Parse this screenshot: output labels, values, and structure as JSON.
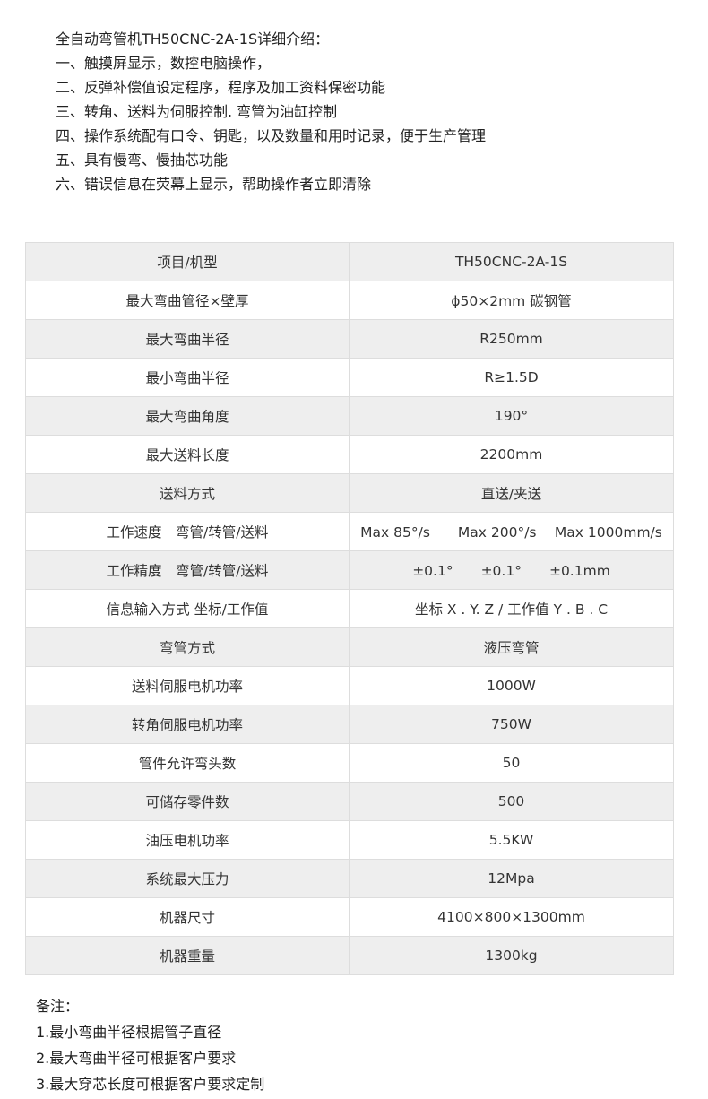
{
  "intro": [
    "全自动弯管机TH50CNC-2A-1S详细介绍：",
    "一、触摸屏显示，数控电脑操作，",
    "二、反弹补偿值设定程序，程序及加工资料保密功能",
    "三、转角、送料为伺服控制. 弯管为油缸控制",
    "四、操作系统配有口令、钥匙，以及数量和用时记录，便于生产管理",
    "五、具有慢弯、慢抽芯功能",
    "六、错误信息在荧幕上显示，帮助操作者立即清除"
  ],
  "table": [
    [
      "项目/机型",
      "TH50CNC-2A-1S"
    ],
    [
      "最大弯曲管径×壁厚",
      "ϕ50×2mm 碳钢管"
    ],
    [
      "最大弯曲半径",
      "R250mm"
    ],
    [
      "最小弯曲半径",
      "R≥1.5D"
    ],
    [
      "最大弯曲角度",
      "190°"
    ],
    [
      "最大送料长度",
      "2200mm"
    ],
    [
      "送料方式",
      "直送/夹送"
    ],
    [
      "工作速度　弯管/转管/送料",
      "Max 85°/s　　Max 200°/s　 Max 1000mm/s"
    ],
    [
      "工作精度　弯管/转管/送料",
      "±0.1°　　±0.1°　　±0.1mm"
    ],
    [
      "信息输入方式  坐标/工作值",
      "坐标 X . Y.  Z  /  工作值 Y . B . C"
    ],
    [
      "弯管方式",
      "液压弯管"
    ],
    [
      "送料伺服电机功率",
      "1000W"
    ],
    [
      "转角伺服电机功率",
      "750W"
    ],
    [
      "管件允许弯头数",
      "50"
    ],
    [
      "可储存零件数",
      "500"
    ],
    [
      "油压电机功率",
      "5.5KW"
    ],
    [
      "系统最大压力",
      "12Mpa"
    ],
    [
      "机器尺寸",
      "4100×800×1300mm"
    ],
    [
      "机器重量",
      "1300kg"
    ]
  ],
  "notes": [
    "备注：",
    "1.最小弯曲半径根据管子直径",
    "2.最大弯曲半径可根据客户要求",
    "3.最大穿芯长度可根据客户要求定制"
  ]
}
